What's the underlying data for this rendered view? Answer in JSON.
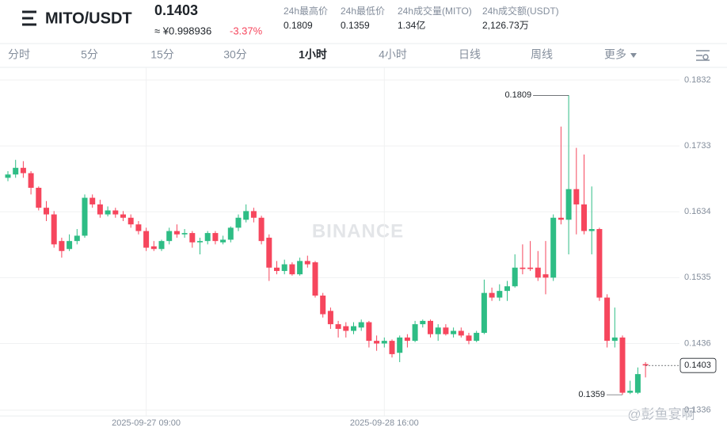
{
  "header": {
    "symbol": "MITO/USDT",
    "price": "0.1403",
    "cny": "≈ ¥0.998936",
    "change": "-3.37%",
    "stats": [
      {
        "label": "24h最高价",
        "value": "0.1809"
      },
      {
        "label": "24h最低价",
        "value": "0.1359"
      },
      {
        "label": "24h成交量(MITO)",
        "value": "1.34亿"
      },
      {
        "label": "24h成交额(USDT)",
        "value": "2,126.73万"
      }
    ]
  },
  "tabs": [
    "分时",
    "5分",
    "15分",
    "30分",
    "1小时",
    "4小时",
    "日线",
    "周线",
    "更多"
  ],
  "watermark": "BINANCE",
  "credit": "@彭鱼宴啊",
  "chart_data": {
    "type": "candlestick",
    "up_color": "#2ebd85",
    "down_color": "#f6465d",
    "categories": [
      null,
      null,
      null,
      null,
      null,
      null,
      null,
      null,
      null,
      null,
      null,
      null,
      null,
      null,
      null,
      null,
      null,
      null,
      "2025-09-27 09:00",
      null,
      null,
      null,
      null,
      null,
      null,
      null,
      null,
      null,
      null,
      null,
      null,
      null,
      null,
      null,
      null,
      null,
      null,
      null,
      null,
      null,
      null,
      null,
      null,
      null,
      null,
      null,
      null,
      null,
      null,
      "2025-09-28 16:00",
      null,
      null,
      null,
      null,
      null,
      null,
      null,
      null,
      null,
      null,
      null,
      null,
      null,
      null,
      null,
      null,
      null,
      null,
      null,
      null,
      null,
      null,
      null,
      null,
      null,
      null,
      null,
      null,
      null,
      null,
      null,
      null,
      null,
      null
    ],
    "open": [
      0.1685,
      0.169,
      0.17,
      0.1692,
      0.167,
      0.164,
      0.163,
      0.159,
      0.1578,
      0.159,
      0.1598,
      0.1655,
      0.1645,
      0.163,
      0.1636,
      0.163,
      0.1625,
      0.1615,
      0.1605,
      0.1582,
      0.1578,
      0.159,
      0.1605,
      0.16,
      0.1602,
      0.1588,
      0.159,
      0.1602,
      0.1588,
      0.1592,
      0.161,
      0.1622,
      0.1635,
      0.1625,
      0.1595,
      0.155,
      0.1545,
      0.1555,
      0.154,
      0.156,
      0.1558,
      0.1508,
      0.1485,
      0.1465,
      0.1462,
      0.1455,
      0.146,
      0.1468,
      0.144,
      0.1436,
      0.144,
      0.1422,
      0.1445,
      0.144,
      0.1465,
      0.147,
      0.145,
      0.146,
      0.145,
      0.1455,
      0.1448,
      0.144,
      0.1452,
      0.1512,
      0.1505,
      0.1515,
      0.1522,
      0.155,
      0.155,
      0.155,
      0.154,
      0.1535,
      0.1625,
      0.1622,
      0.1668,
      0.1645,
      0.1605,
      0.1608,
      0.1505,
      0.144,
      0.1445,
      0.1362,
      0.1362,
      0.1405
    ],
    "high": [
      0.1695,
      0.1712,
      0.171,
      0.1695,
      0.1672,
      0.165,
      0.1635,
      0.1595,
      0.16,
      0.1608,
      0.166,
      0.166,
      0.1652,
      0.1642,
      0.164,
      0.1635,
      0.163,
      0.162,
      0.161,
      0.159,
      0.1592,
      0.161,
      0.1615,
      0.1608,
      0.1605,
      0.1595,
      0.1605,
      0.1605,
      0.1598,
      0.1612,
      0.163,
      0.1645,
      0.164,
      0.1628,
      0.16,
      0.156,
      0.1562,
      0.1558,
      0.1565,
      0.1568,
      0.156,
      0.1512,
      0.149,
      0.147,
      0.1468,
      0.1468,
      0.1472,
      0.147,
      0.1448,
      0.1445,
      0.1442,
      0.1448,
      0.145,
      0.147,
      0.1472,
      0.1472,
      0.1465,
      0.1465,
      0.146,
      0.146,
      0.1452,
      0.1455,
      0.1532,
      0.152,
      0.1525,
      0.153,
      0.157,
      0.1585,
      0.159,
      0.1575,
      0.159,
      0.163,
      0.1762,
      0.1809,
      0.173,
      0.172,
      0.1672,
      0.161,
      0.151,
      0.149,
      0.1448,
      0.138,
      0.14,
      0.1408
    ],
    "low": [
      0.168,
      0.1685,
      0.1685,
      0.166,
      0.1636,
      0.162,
      0.158,
      0.1565,
      0.1575,
      0.1585,
      0.1595,
      0.164,
      0.1625,
      0.1627,
      0.1625,
      0.162,
      0.161,
      0.16,
      0.1575,
      0.1575,
      0.1575,
      0.1585,
      0.1595,
      0.1595,
      0.158,
      0.157,
      0.1585,
      0.1585,
      0.1585,
      0.1588,
      0.1605,
      0.1618,
      0.1618,
      0.1585,
      0.153,
      0.154,
      0.154,
      0.1538,
      0.1538,
      0.155,
      0.1505,
      0.1475,
      0.1458,
      0.1445,
      0.1445,
      0.145,
      0.1455,
      0.143,
      0.1425,
      0.143,
      0.1415,
      0.1408,
      0.143,
      0.1438,
      0.146,
      0.1445,
      0.144,
      0.1448,
      0.1445,
      0.1445,
      0.1435,
      0.1438,
      0.145,
      0.15,
      0.15,
      0.15,
      0.152,
      0.154,
      0.1545,
      0.153,
      0.151,
      0.153,
      0.1615,
      0.157,
      0.16,
      0.16,
      0.157,
      0.15,
      0.143,
      0.143,
      0.1359,
      0.136,
      0.136,
      0.1385
    ],
    "close": [
      0.169,
      0.17,
      0.1692,
      0.167,
      0.164,
      0.163,
      0.1585,
      0.1575,
      0.159,
      0.1598,
      0.1655,
      0.1645,
      0.163,
      0.1636,
      0.163,
      0.1625,
      0.1615,
      0.1605,
      0.158,
      0.1578,
      0.159,
      0.1605,
      0.16,
      0.1602,
      0.1588,
      0.159,
      0.1602,
      0.159,
      0.1592,
      0.161,
      0.1625,
      0.1635,
      0.1625,
      0.159,
      0.155,
      0.1545,
      0.1555,
      0.154,
      0.156,
      0.1555,
      0.1508,
      0.148,
      0.1465,
      0.1458,
      0.1455,
      0.1462,
      0.1468,
      0.144,
      0.1436,
      0.144,
      0.142,
      0.1445,
      0.144,
      0.1465,
      0.147,
      0.145,
      0.146,
      0.145,
      0.1455,
      0.1448,
      0.144,
      0.1452,
      0.1512,
      0.1505,
      0.1515,
      0.1522,
      0.155,
      0.1548,
      0.1548,
      0.1535,
      0.1535,
      0.1625,
      0.1622,
      0.1668,
      0.1645,
      0.1605,
      0.1608,
      0.1505,
      0.144,
      0.1445,
      0.1362,
      0.1365,
      0.139,
      0.1403
    ],
    "high_label": 0.1809,
    "low_label": 0.1359,
    "last_price": 0.1403,
    "ylim": [
      0.1327,
      0.1851
    ],
    "yticks": [
      0.1336,
      0.1436,
      0.1535,
      0.1634,
      0.1733,
      0.1832
    ],
    "grid": true
  }
}
